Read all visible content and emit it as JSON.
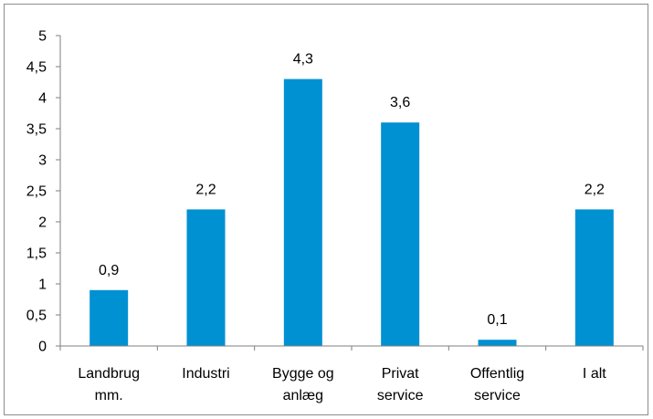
{
  "chart_data": {
    "type": "bar",
    "title": "",
    "xlabel": "",
    "ylabel": "",
    "categories": [
      [
        "Landbrug",
        "mm."
      ],
      [
        "Industri"
      ],
      [
        "Bygge og",
        "anlæg"
      ],
      [
        "Privat",
        "service"
      ],
      [
        "Offentlig",
        "service"
      ],
      [
        "I alt"
      ]
    ],
    "values": [
      0.9,
      2.2,
      4.3,
      3.6,
      0.1,
      2.2
    ],
    "value_labels": [
      "0,9",
      "2,2",
      "4,3",
      "3,6",
      "0,1",
      "2,2"
    ],
    "ylim": [
      0,
      5
    ],
    "y_ticks": [
      0,
      0.5,
      1,
      1.5,
      2,
      2.5,
      3,
      3.5,
      4,
      4.5,
      5
    ],
    "y_tick_labels": [
      "0",
      "0,5",
      "1",
      "1,5",
      "2",
      "2,5",
      "3",
      "3,5",
      "4",
      "4,5",
      "5"
    ],
    "grid": false,
    "legend": "none",
    "bar_color": "#0091D2",
    "axis_color": "#7f7f7f"
  }
}
